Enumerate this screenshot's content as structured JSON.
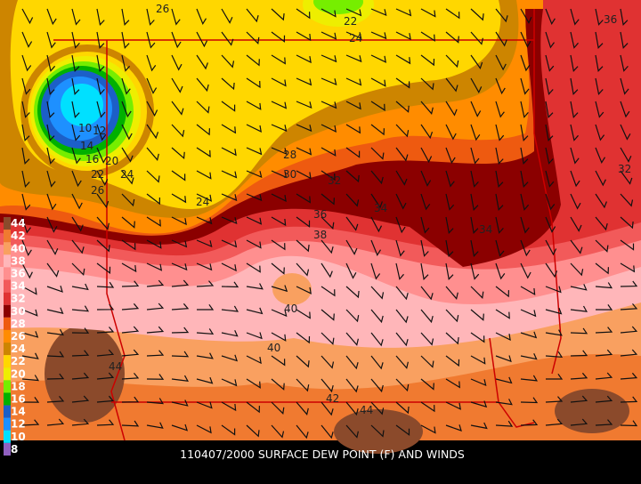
{
  "caption": "110407/2000 SURFACE DEW POINT (F) AND WINDS",
  "legend": [
    {
      "label": "44",
      "color": "#8b4a2b"
    },
    {
      "label": "42",
      "color": "#f07a30"
    },
    {
      "label": "40",
      "color": "#f9a060"
    },
    {
      "label": "38",
      "color": "#ffb6b9"
    },
    {
      "label": "36",
      "color": "#ff8f8f"
    },
    {
      "label": "34",
      "color": "#f25a5a"
    },
    {
      "label": "32",
      "color": "#e03232"
    },
    {
      "label": "30",
      "color": "#8b0000"
    },
    {
      "label": "28",
      "color": "#ee5a10"
    },
    {
      "label": "26",
      "color": "#ff8c00"
    },
    {
      "label": "24",
      "color": "#cd8500"
    },
    {
      "label": "22",
      "color": "#ffd700"
    },
    {
      "label": "20",
      "color": "#eeee00"
    },
    {
      "label": "18",
      "color": "#76ee00"
    },
    {
      "label": "16",
      "color": "#00b000"
    },
    {
      "label": "14",
      "color": "#1c5fc8"
    },
    {
      "label": "12",
      "color": "#1e90ff"
    },
    {
      "label": "10",
      "color": "#00e0ff"
    },
    {
      "label": "8",
      "color": "#9060c0"
    }
  ],
  "contour_labels": [
    "26",
    "22",
    "24",
    "36",
    "10",
    "12",
    "14",
    "16",
    "20",
    "22",
    "24",
    "26",
    "28",
    "30",
    "32",
    "34",
    "36",
    "38",
    "24",
    "40",
    "40",
    "44",
    "42",
    "44",
    "34",
    "32"
  ]
}
